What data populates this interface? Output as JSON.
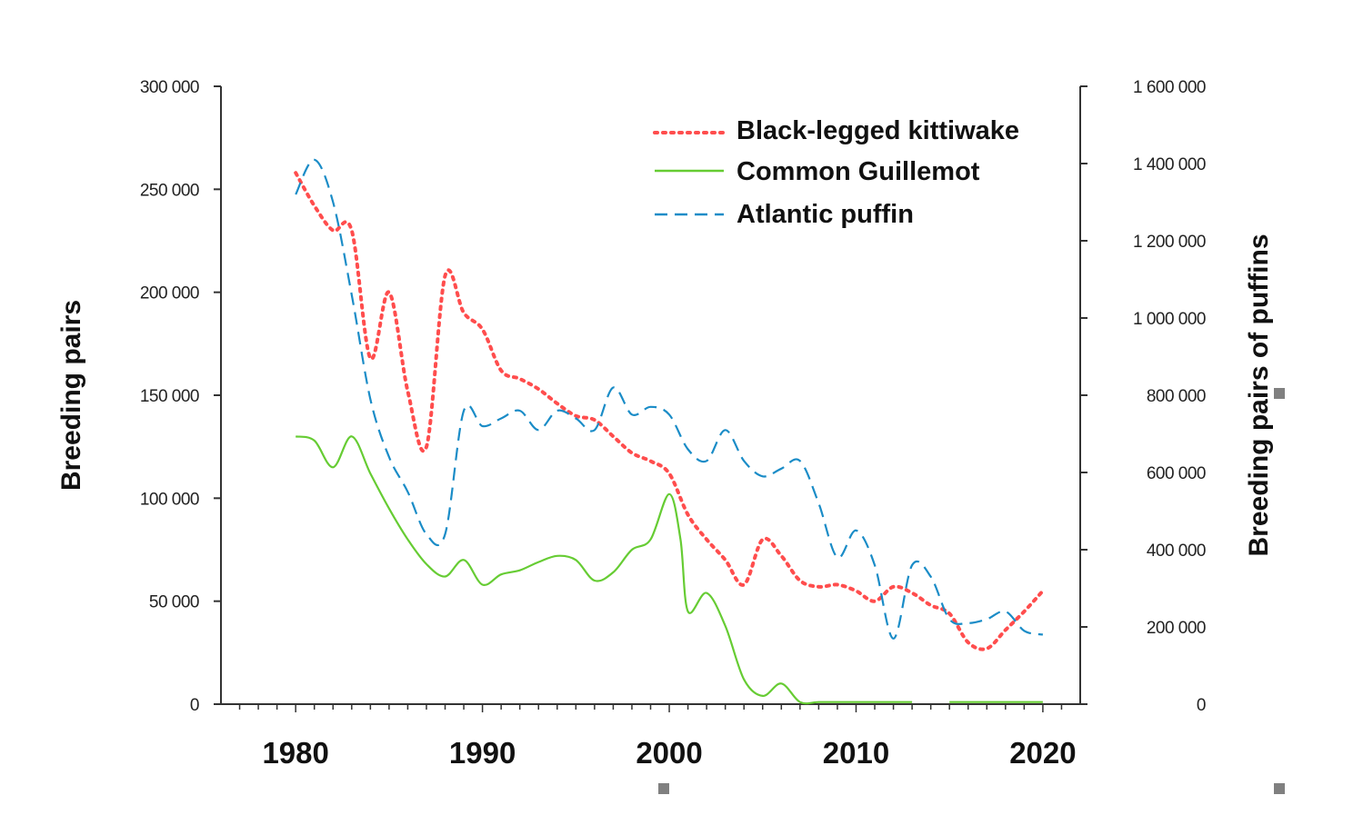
{
  "chart_data": {
    "type": "line",
    "title": "",
    "xlabel": "",
    "ylabel": "Breeding pairs",
    "y2label": "Breeding pairs of puffins",
    "xlim": [
      1976,
      2022
    ],
    "ylim": [
      0,
      300000
    ],
    "y2lim": [
      0,
      1600000
    ],
    "x_ticks": [
      1980,
      1990,
      2000,
      2010,
      2020
    ],
    "y_ticks": [
      0,
      50000,
      100000,
      150000,
      200000,
      250000,
      300000
    ],
    "y_tick_labels": [
      "0",
      "50 000",
      "100 000",
      "150 000",
      "200 000",
      "250 000",
      "300 000"
    ],
    "y2_ticks": [
      0,
      200000,
      400000,
      600000,
      800000,
      1000000,
      1200000,
      1400000,
      1600000
    ],
    "y2_tick_labels": [
      "0",
      "200 000",
      "400 000",
      "600 000",
      "800 000",
      "1 000 000",
      "1 200 000",
      "1 400 000",
      "1 600 000"
    ],
    "grid": false,
    "legend_position": "top-right",
    "series": [
      {
        "name": "Black-legged kittiwake",
        "axis": "left",
        "color": "#ff4d4d",
        "style": "dotted",
        "x": [
          1980,
          1981,
          1982,
          1983,
          1984,
          1985,
          1986,
          1987,
          1988,
          1989,
          1990,
          1991,
          1992,
          1993,
          1994,
          1995,
          1996,
          1997,
          1998,
          1999,
          2000,
          2001,
          2002,
          2003,
          2004,
          2005,
          2006,
          2007,
          2008,
          2009,
          2010,
          2011,
          2012,
          2013,
          2014,
          2015,
          2016,
          2017,
          2018,
          2019,
          2020
        ],
        "y": [
          258000,
          242000,
          230000,
          230000,
          168000,
          200000,
          152000,
          125000,
          208000,
          190000,
          182000,
          162000,
          158000,
          153000,
          146000,
          140000,
          138000,
          130000,
          122000,
          118000,
          112000,
          92000,
          80000,
          70000,
          58000,
          80000,
          72000,
          60000,
          57000,
          58000,
          55000,
          50000,
          57000,
          54000,
          48000,
          44000,
          30000,
          27000,
          36000,
          45000,
          55000
        ]
      },
      {
        "name": "Common Guillemot",
        "axis": "left",
        "color": "#66cc33",
        "style": "solid",
        "x": [
          1980,
          1981,
          1982,
          1983,
          1984,
          1985,
          1986,
          1987,
          1988,
          1989,
          1990,
          1991,
          1992,
          1993,
          1994,
          1995,
          1996,
          1997,
          1998,
          1999,
          2000,
          2000.6,
          2001,
          2002,
          2003,
          2004,
          2005,
          2006,
          2007,
          2008,
          2009,
          2010,
          2011,
          2012,
          2013,
          2015,
          2016,
          2017,
          2018,
          2019,
          2020
        ],
        "y": [
          130000,
          128000,
          115000,
          130000,
          112000,
          95000,
          80000,
          68000,
          62000,
          70000,
          58000,
          63000,
          65000,
          69000,
          72000,
          70000,
          60000,
          64000,
          75000,
          80000,
          102000,
          80000,
          45000,
          54000,
          38000,
          12000,
          4000,
          10000,
          1000,
          1000,
          1000,
          1000,
          1000,
          1000,
          1000,
          1000,
          1000,
          1000,
          1000,
          1000,
          1000
        ]
      },
      {
        "name": "Atlantic puffin",
        "axis": "right",
        "color": "#1a8cc7",
        "style": "dashed",
        "x": [
          1980,
          1981,
          1982,
          1983,
          1984,
          1985,
          1986,
          1987,
          1988,
          1989,
          1990,
          1991,
          1992,
          1993,
          1994,
          1995,
          1996,
          1997,
          1998,
          1999,
          2000,
          2001,
          2002,
          2003,
          2004,
          2005,
          2006,
          2007,
          2008,
          2009,
          2010,
          2011,
          2012,
          2013,
          2014,
          2015,
          2016,
          2017,
          2018,
          2019,
          2020
        ],
        "y": [
          1320000,
          1410000,
          1300000,
          1060000,
          790000,
          640000,
          550000,
          440000,
          440000,
          760000,
          720000,
          740000,
          760000,
          710000,
          760000,
          740000,
          710000,
          820000,
          750000,
          770000,
          750000,
          660000,
          630000,
          710000,
          630000,
          590000,
          610000,
          630000,
          520000,
          380000,
          450000,
          360000,
          170000,
          360000,
          330000,
          220000,
          210000,
          220000,
          240000,
          190000,
          180000
        ]
      }
    ]
  }
}
